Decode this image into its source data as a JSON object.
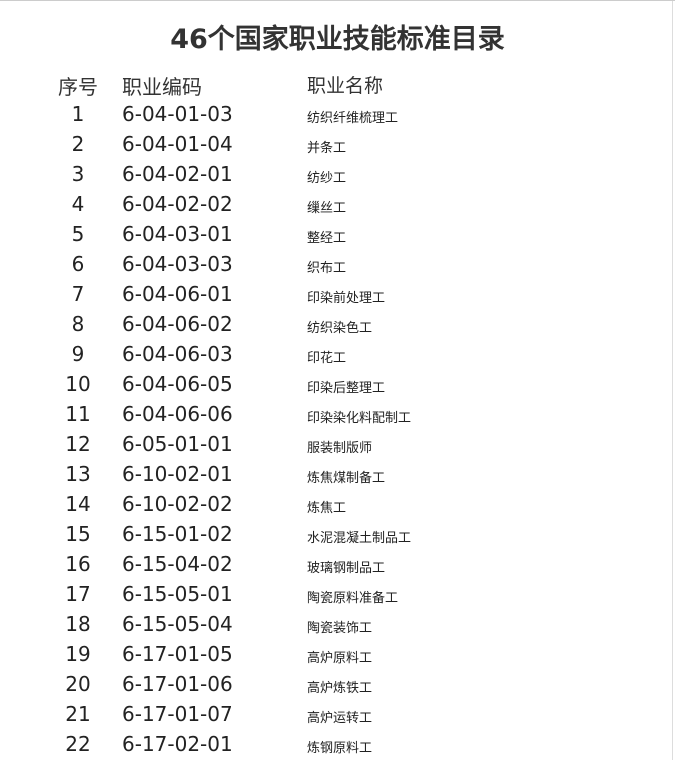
{
  "title": "46个国家职业技能标准目录",
  "headers": {
    "no": "序号",
    "code": "职业编码",
    "name": "职业名称"
  },
  "rows": [
    {
      "no": "1",
      "code": "6-04-01-03",
      "name": "纺织纤维梳理工"
    },
    {
      "no": "2",
      "code": "6-04-01-04",
      "name": "并条工"
    },
    {
      "no": "3",
      "code": "6-04-02-01",
      "name": "纺纱工"
    },
    {
      "no": "4",
      "code": "6-04-02-02",
      "name": "缫丝工"
    },
    {
      "no": "5",
      "code": "6-04-03-01",
      "name": "整经工"
    },
    {
      "no": "6",
      "code": "6-04-03-03",
      "name": "织布工"
    },
    {
      "no": "7",
      "code": "6-04-06-01",
      "name": "印染前处理工"
    },
    {
      "no": "8",
      "code": "6-04-06-02",
      "name": "纺织染色工"
    },
    {
      "no": "9",
      "code": "6-04-06-03",
      "name": "印花工"
    },
    {
      "no": "10",
      "code": "6-04-06-05",
      "name": "印染后整理工"
    },
    {
      "no": "11",
      "code": "6-04-06-06",
      "name": "印染染化料配制工"
    },
    {
      "no": "12",
      "code": "6-05-01-01",
      "name": "服装制版师"
    },
    {
      "no": "13",
      "code": "6-10-02-01",
      "name": "炼焦煤制备工"
    },
    {
      "no": "14",
      "code": "6-10-02-02",
      "name": "炼焦工"
    },
    {
      "no": "15",
      "code": "6-15-01-02",
      "name": "水泥混凝土制品工"
    },
    {
      "no": "16",
      "code": "6-15-04-02",
      "name": "玻璃钢制品工"
    },
    {
      "no": "17",
      "code": "6-15-05-01",
      "name": "陶瓷原料准备工"
    },
    {
      "no": "18",
      "code": "6-15-05-04",
      "name": "陶瓷装饰工"
    },
    {
      "no": "19",
      "code": "6-17-01-05",
      "name": "高炉原料工"
    },
    {
      "no": "20",
      "code": "6-17-01-06",
      "name": "高炉炼铁工"
    },
    {
      "no": "21",
      "code": "6-17-01-07",
      "name": "高炉运转工"
    },
    {
      "no": "22",
      "code": "6-17-02-01",
      "name": "炼钢原料工"
    }
  ]
}
